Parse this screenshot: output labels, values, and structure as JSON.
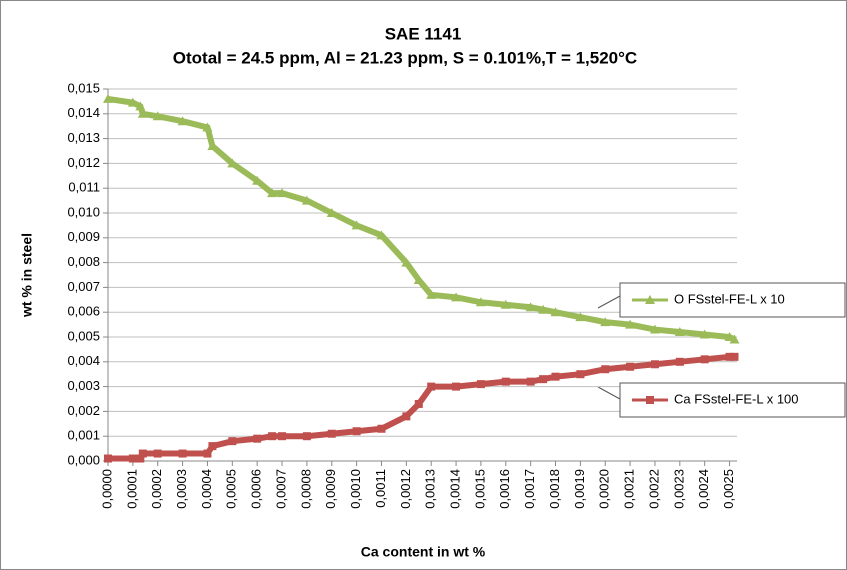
{
  "chart_data": {
    "type": "line",
    "title": "SAE 1141",
    "subtitle": "Ototal = 24.5 ppm, Al = 21.23 ppm, S = 0.101%,T = 1,520°C",
    "x_label": "Ca content in wt %",
    "y_label": "wt % in steel",
    "x": [
      0,
      0.0001,
      0.00013,
      0.00014,
      0.0002,
      0.0003,
      0.0004,
      0.00042,
      0.0005,
      0.0006,
      0.00066,
      0.0007,
      0.0008,
      0.0009,
      0.001,
      0.0011,
      0.0012,
      0.00125,
      0.0013,
      0.0014,
      0.0015,
      0.0016,
      0.0017,
      0.00175,
      0.0018,
      0.0019,
      0.002,
      0.0021,
      0.0022,
      0.0023,
      0.0024,
      0.0025,
      0.00252
    ],
    "series": [
      {
        "name": "O  FSstel-FE-L x 10",
        "color": "#9bbb59",
        "marker": "triangle",
        "values": [
          0.0146,
          0.01445,
          0.0143,
          0.014,
          0.0139,
          0.0137,
          0.01345,
          0.0127,
          0.012,
          0.0113,
          0.0108,
          0.0108,
          0.0105,
          0.01,
          0.0095,
          0.0091,
          0.008,
          0.0073,
          0.0067,
          0.0066,
          0.0064,
          0.0063,
          0.0062,
          0.0061,
          0.006,
          0.0058,
          0.0056,
          0.0055,
          0.0053,
          0.0052,
          0.0051,
          0.005,
          0.0049
        ]
      },
      {
        "name": "Ca  FSstel-FE-L x 100",
        "color": "#c0504d",
        "marker": "square",
        "values": [
          0.0001,
          0.0001,
          0.0001,
          0.0003,
          0.0003,
          0.0003,
          0.0003,
          0.0006,
          0.0008,
          0.0009,
          0.001,
          0.001,
          0.001,
          0.0011,
          0.0012,
          0.0013,
          0.0018,
          0.0023,
          0.003,
          0.003,
          0.0031,
          0.0032,
          0.0032,
          0.0033,
          0.0034,
          0.0035,
          0.0037,
          0.0038,
          0.0039,
          0.004,
          0.0041,
          0.0042,
          0.0042
        ]
      }
    ],
    "xlim": [
      0,
      0.00253
    ],
    "xticks": [
      {
        "value": 0,
        "label": "0,0000"
      },
      {
        "value": 0.0001,
        "label": "0,0001"
      },
      {
        "value": 0.0002,
        "label": "0,0002"
      },
      {
        "value": 0.0003,
        "label": "0,0003"
      },
      {
        "value": 0.0004,
        "label": "0,0004"
      },
      {
        "value": 0.0005,
        "label": "0,0005"
      },
      {
        "value": 0.0006,
        "label": "0,0006"
      },
      {
        "value": 0.0007,
        "label": "0,0007"
      },
      {
        "value": 0.0008,
        "label": "0,0008"
      },
      {
        "value": 0.0009,
        "label": "0,0009"
      },
      {
        "value": 0.001,
        "label": "0,0010"
      },
      {
        "value": 0.0011,
        "label": "0,0011"
      },
      {
        "value": 0.0012,
        "label": "0,0012"
      },
      {
        "value": 0.0013,
        "label": "0,0013"
      },
      {
        "value": 0.0014,
        "label": "0,0014"
      },
      {
        "value": 0.0015,
        "label": "0,0015"
      },
      {
        "value": 0.0016,
        "label": "0,0016"
      },
      {
        "value": 0.0017,
        "label": "0,0017"
      },
      {
        "value": 0.0018,
        "label": "0,0018"
      },
      {
        "value": 0.0019,
        "label": "0,0019"
      },
      {
        "value": 0.002,
        "label": "0,0020"
      },
      {
        "value": 0.0021,
        "label": "0,0021"
      },
      {
        "value": 0.0022,
        "label": "0,0022"
      },
      {
        "value": 0.0023,
        "label": "0,0023"
      },
      {
        "value": 0.0024,
        "label": "0,0024"
      },
      {
        "value": 0.0025,
        "label": "0,0025"
      }
    ],
    "ylim": [
      0,
      0.015
    ],
    "yticks": [
      {
        "value": 0,
        "label": "0,000"
      },
      {
        "value": 0.001,
        "label": "0,001"
      },
      {
        "value": 0.002,
        "label": "0,002"
      },
      {
        "value": 0.003,
        "label": "0,003"
      },
      {
        "value": 0.004,
        "label": "0,004"
      },
      {
        "value": 0.005,
        "label": "0,005"
      },
      {
        "value": 0.006,
        "label": "0,006"
      },
      {
        "value": 0.007,
        "label": "0,007"
      },
      {
        "value": 0.008,
        "label": "0,008"
      },
      {
        "value": 0.009,
        "label": "0,009"
      },
      {
        "value": 0.01,
        "label": "0,010"
      },
      {
        "value": 0.011,
        "label": "0,011"
      },
      {
        "value": 0.012,
        "label": "0,012"
      },
      {
        "value": 0.013,
        "label": "0,013"
      },
      {
        "value": 0.014,
        "label": "0,014"
      },
      {
        "value": 0.015,
        "label": "0,015"
      }
    ],
    "grid": true,
    "legend": "right"
  }
}
